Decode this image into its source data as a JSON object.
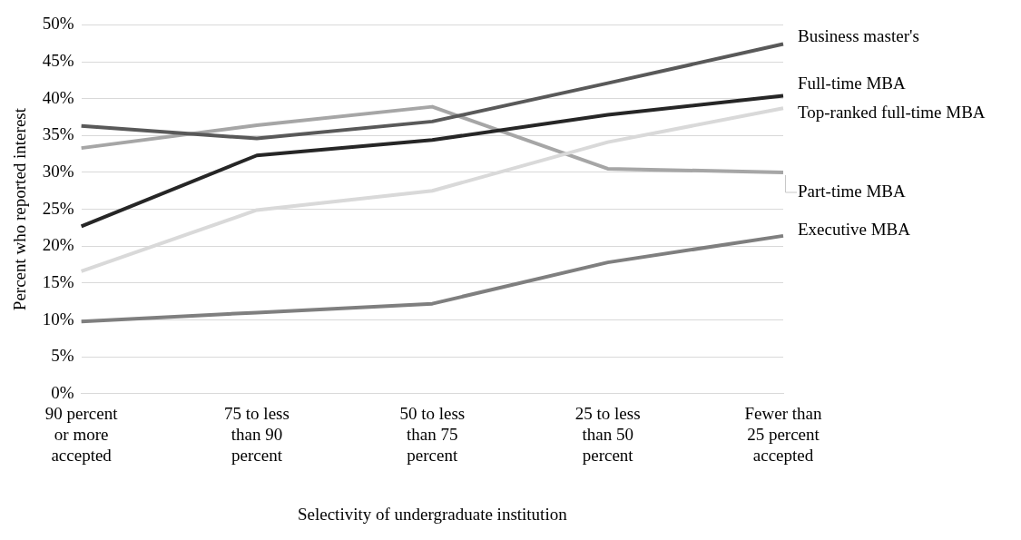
{
  "chart_data": {
    "type": "line",
    "xlabel": "Selectivity of undergraduate institution",
    "ylabel": "Percent who reported interest",
    "categories": [
      "90 percent or more accepted",
      "75 to less than 90 percent",
      "50 to less than 75 percent",
      "25 to less than 50 percent",
      "Fewer than 25 percent accepted"
    ],
    "series": [
      {
        "name": "Business master's",
        "color": "#595959",
        "values": [
          36.3,
          34.6,
          36.9,
          42.1,
          47.4
        ]
      },
      {
        "name": "Full-time MBA",
        "color": "#262626",
        "values": [
          22.7,
          32.3,
          34.4,
          37.8,
          40.4
        ]
      },
      {
        "name": "Top-ranked full-time MBA",
        "color": "#d9d9d9",
        "values": [
          16.6,
          24.9,
          27.5,
          34.1,
          38.7
        ]
      },
      {
        "name": "Part-time MBA",
        "color": "#a6a6a6",
        "values": [
          33.3,
          36.4,
          38.9,
          30.5,
          30.0
        ]
      },
      {
        "name": "Executive MBA",
        "color": "#7f7f7f",
        "values": [
          9.8,
          11.0,
          12.2,
          17.8,
          21.4
        ]
      }
    ],
    "ylim": [
      0,
      50
    ],
    "yticks": [
      {
        "value": 0,
        "label": "0%"
      },
      {
        "value": 5,
        "label": "5%"
      },
      {
        "value": 10,
        "label": "10%"
      },
      {
        "value": 15,
        "label": "15%"
      },
      {
        "value": 20,
        "label": "20%"
      },
      {
        "value": 25,
        "label": "25%"
      },
      {
        "value": 30,
        "label": "30%"
      },
      {
        "value": 35,
        "label": "35%"
      },
      {
        "value": 40,
        "label": "40%"
      },
      {
        "value": 45,
        "label": "45%"
      },
      {
        "value": 50,
        "label": "50%"
      }
    ],
    "grid": "y",
    "legend": false,
    "marker": "none",
    "line_style": "solid"
  }
}
